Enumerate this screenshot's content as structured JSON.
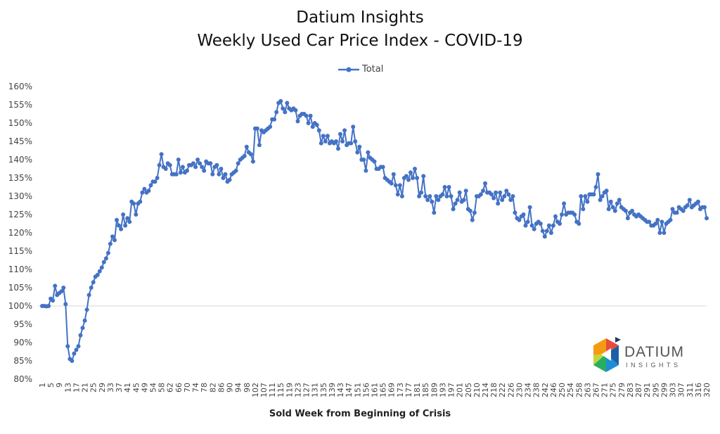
{
  "chart_data": {
    "type": "line",
    "title": "Datium Insights",
    "subtitle": "Weekly Used Car Price Index - COVID-19",
    "xlabel": "Sold Week from Beginning of Crisis",
    "ylabel": "",
    "ylim": [
      80,
      160
    ],
    "y_ticks": [
      "80%",
      "85%",
      "90%",
      "95%",
      "100%",
      "105%",
      "110%",
      "115%",
      "120%",
      "125%",
      "130%",
      "135%",
      "140%",
      "145%",
      "150%",
      "155%",
      "160%"
    ],
    "reference_line": 100,
    "legend": {
      "placement": "top-center",
      "entries": [
        "Total"
      ]
    },
    "x_tick_labels": [
      "1",
      "5",
      "9",
      "13",
      "17",
      "21",
      "25",
      "29",
      "33",
      "37",
      "41",
      "45",
      "49",
      "54",
      "58",
      "62",
      "66",
      "70",
      "74",
      "78",
      "82",
      "86",
      "90",
      "94",
      "98",
      "102",
      "107",
      "111",
      "115",
      "119",
      "123",
      "127",
      "131",
      "135",
      "139",
      "143",
      "147",
      "151",
      "156",
      "161",
      "165",
      "169",
      "173",
      "177",
      "181",
      "185",
      "189",
      "193",
      "197",
      "201",
      "205",
      "210",
      "214",
      "218",
      "222",
      "226",
      "230",
      "234",
      "238",
      "242",
      "246",
      "250",
      "254",
      "258",
      "263",
      "267",
      "271",
      "275",
      "279",
      "283",
      "287",
      "291",
      "295",
      "299",
      "303",
      "307",
      "311",
      "316",
      "320"
    ],
    "series": [
      {
        "name": "Total",
        "color": "#4472C4",
        "values": [
          100,
          100,
          99.9,
          100,
          102,
          101.5,
          105.5,
          103,
          103.5,
          104,
          105,
          100.5,
          89,
          85.5,
          85,
          87,
          88,
          89,
          92,
          94,
          96,
          99,
          103,
          105,
          106.5,
          108,
          108.5,
          109.5,
          110.5,
          112,
          113,
          114.5,
          117,
          119,
          118,
          123.5,
          122,
          121,
          125,
          122,
          124,
          123,
          128.5,
          128,
          125,
          128,
          128.5,
          131,
          132,
          131,
          131.5,
          133,
          134,
          134,
          135,
          138.5,
          141.5,
          138,
          137.5,
          139,
          138.5,
          136,
          136,
          136,
          140,
          136.5,
          138,
          136.5,
          137,
          138.5,
          138.5,
          139,
          138,
          140,
          139,
          138,
          137,
          139.5,
          139,
          139,
          136,
          138,
          138.5,
          136,
          137.5,
          135,
          136,
          134,
          134.5,
          136,
          136.5,
          137,
          139,
          140,
          140.5,
          141,
          143.5,
          142,
          141.5,
          139.5,
          148.5,
          148.5,
          144,
          148,
          147.5,
          148,
          148.5,
          149,
          151,
          151,
          153,
          155.5,
          156,
          154,
          153,
          155.5,
          154,
          153.5,
          154,
          153.5,
          150.5,
          152,
          152.5,
          152.5,
          152,
          150,
          152,
          149,
          150,
          149.5,
          148,
          144.5,
          146.5,
          145,
          146.5,
          144.5,
          145,
          144.5,
          145,
          143,
          147,
          145,
          148,
          144,
          144.5,
          144.5,
          149,
          145,
          142,
          143.5,
          140,
          140,
          137,
          142,
          140.5,
          140,
          139.5,
          137.5,
          137.5,
          138,
          138,
          135,
          134.5,
          134,
          133.5,
          136,
          133,
          130.5,
          133,
          130,
          135,
          135.5,
          134.5,
          136.5,
          135,
          137.5,
          135,
          130,
          131,
          135.5,
          130,
          129,
          130,
          128.5,
          125.5,
          130,
          129,
          130,
          130.5,
          132.5,
          130,
          132.5,
          130,
          126.5,
          128,
          129,
          131,
          128.5,
          129,
          131.5,
          126.5,
          126,
          123.5,
          125.5,
          130,
          130,
          130.5,
          131.5,
          133.5,
          131,
          131,
          130.5,
          129.5,
          131,
          128,
          131,
          129,
          130,
          131.5,
          130.5,
          129,
          130,
          125.5,
          124,
          123.5,
          124.5,
          125,
          122,
          123,
          127,
          122,
          121,
          122.5,
          123,
          122.5,
          120.5,
          119,
          120.5,
          122,
          120,
          122,
          124.5,
          123,
          122.5,
          125,
          128,
          125,
          125.5,
          125.5,
          125.5,
          125,
          123,
          122.5,
          130,
          126.5,
          130,
          128.5,
          130.5,
          130.5,
          130.5,
          132.5,
          136,
          129,
          130,
          131,
          131.5,
          126.5,
          128.5,
          127,
          126,
          128,
          129,
          127,
          126.5,
          126,
          124,
          125.5,
          126,
          125,
          124.5,
          125,
          124.5,
          124,
          123.5,
          123,
          123,
          122,
          122,
          122.5,
          123.5,
          120,
          123,
          120,
          122.5,
          123,
          123.5,
          126.5,
          125.5,
          125.5,
          127,
          126.5,
          126,
          127,
          127.5,
          129,
          127,
          127.5,
          128,
          128.5,
          126.5,
          127,
          127,
          124
        ]
      }
    ]
  },
  "logo": {
    "name": "DATIUM",
    "tagline": "INSIGHTS"
  }
}
